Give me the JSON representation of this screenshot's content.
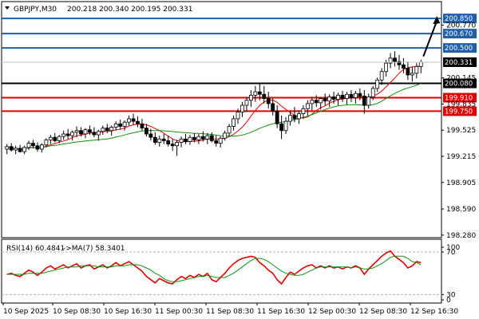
{
  "header": {
    "symbol": "GBPJPY,M30",
    "ohlc": "200.218 200.340 200.195 200.331"
  },
  "rsi_header": {
    "label": "RSI(14) 60.4841",
    "ma_label": "->MA(7) 58.3401"
  },
  "colors": {
    "blue": "#1f5fa8",
    "red": "#e00000",
    "black": "#000000",
    "bull_candle": "#ffffff",
    "bear_candle": "#000000",
    "ma_fast": "#e00000",
    "ma_slow": "#109010",
    "rsi_line": "#e00000",
    "rsi_ma": "#109010"
  },
  "chart_data": [
    {
      "type": "candlestick",
      "ylim": [
        198.25,
        201.05
      ],
      "price_axis_ticks": [
        "200.770",
        "200.145",
        "199.835",
        "199.525",
        "199.215",
        "198.905",
        "198.590",
        "198.280"
      ],
      "x_tick_labels": [
        "10 Sep 2025",
        "10 Sep 08:30",
        "10 Sep 16:30",
        "11 Sep 00:30",
        "11 Sep 08:30",
        "11 Sep 16:30",
        "12 Sep 00:30",
        "12 Sep 08:30",
        "12 Sep 16:30"
      ],
      "horizontal_levels": [
        {
          "value": 200.85,
          "label": "200.850",
          "color_key": "blue"
        },
        {
          "value": 200.67,
          "label": "200.670",
          "color_key": "blue"
        },
        {
          "value": 200.5,
          "label": "200.500",
          "color_key": "blue"
        },
        {
          "value": 200.08,
          "label": "200.080",
          "color_key": "black"
        },
        {
          "value": 199.91,
          "label": "199.910",
          "color_key": "red"
        },
        {
          "value": 199.75,
          "label": "199.750",
          "color_key": "red"
        }
      ],
      "current_price": {
        "value": 200.331,
        "label": "200.331"
      },
      "arrow": {
        "from": [
          0,
          200.4
        ],
        "to": [
          2,
          200.86
        ]
      },
      "candles": [
        [
          199.3,
          199.36,
          199.24,
          199.33
        ],
        [
          199.33,
          199.37,
          199.27,
          199.29
        ],
        [
          199.29,
          199.34,
          199.24,
          199.31
        ],
        [
          199.31,
          199.35,
          199.26,
          199.27
        ],
        [
          199.27,
          199.34,
          199.24,
          199.32
        ],
        [
          199.32,
          199.4,
          199.29,
          199.37
        ],
        [
          199.37,
          199.41,
          199.31,
          199.34
        ],
        [
          199.34,
          199.38,
          199.27,
          199.3
        ],
        [
          199.3,
          199.37,
          199.26,
          199.35
        ],
        [
          199.35,
          199.43,
          199.32,
          199.41
        ],
        [
          199.41,
          199.47,
          199.36,
          199.44
        ],
        [
          199.44,
          199.49,
          199.38,
          199.4
        ],
        [
          199.4,
          199.47,
          199.37,
          199.45
        ],
        [
          199.45,
          199.52,
          199.41,
          199.48
        ],
        [
          199.48,
          199.54,
          199.42,
          199.46
        ],
        [
          199.46,
          199.52,
          199.4,
          199.5
        ],
        [
          199.5,
          199.57,
          199.44,
          199.52
        ],
        [
          199.52,
          199.56,
          199.45,
          199.48
        ],
        [
          199.48,
          199.55,
          199.43,
          199.53
        ],
        [
          199.53,
          199.58,
          199.47,
          199.5
        ],
        [
          199.5,
          199.56,
          199.44,
          199.47
        ],
        [
          199.47,
          199.53,
          199.4,
          199.51
        ],
        [
          199.51,
          199.58,
          199.47,
          199.55
        ],
        [
          199.55,
          199.6,
          199.49,
          199.52
        ],
        [
          199.52,
          199.58,
          199.46,
          199.56
        ],
        [
          199.56,
          199.63,
          199.52,
          199.6
        ],
        [
          199.6,
          199.65,
          199.54,
          199.57
        ],
        [
          199.57,
          199.64,
          199.52,
          199.62
        ],
        [
          199.62,
          199.7,
          199.58,
          199.66
        ],
        [
          199.66,
          199.72,
          199.59,
          199.63
        ],
        [
          199.63,
          199.69,
          199.56,
          199.6
        ],
        [
          199.6,
          199.66,
          199.52,
          199.55
        ],
        [
          199.55,
          199.6,
          199.45,
          199.48
        ],
        [
          199.48,
          199.54,
          199.4,
          199.44
        ],
        [
          199.44,
          199.5,
          199.35,
          199.38
        ],
        [
          199.38,
          199.46,
          199.33,
          199.42
        ],
        [
          199.42,
          199.48,
          199.36,
          199.4
        ],
        [
          199.4,
          199.46,
          199.33,
          199.36
        ],
        [
          199.36,
          199.42,
          199.28,
          199.34
        ],
        [
          199.34,
          199.41,
          199.22,
          199.38
        ],
        [
          199.38,
          199.45,
          199.32,
          199.42
        ],
        [
          199.42,
          199.48,
          199.36,
          199.39
        ],
        [
          199.39,
          199.47,
          199.35,
          199.44
        ],
        [
          199.44,
          199.49,
          199.38,
          199.41
        ],
        [
          199.41,
          199.48,
          199.36,
          199.45
        ],
        [
          199.45,
          199.51,
          199.39,
          199.42
        ],
        [
          199.42,
          199.49,
          199.36,
          199.46
        ],
        [
          199.46,
          199.5,
          199.38,
          199.4
        ],
        [
          199.4,
          199.46,
          199.33,
          199.37
        ],
        [
          199.37,
          199.45,
          199.32,
          199.43
        ],
        [
          199.43,
          199.52,
          199.4,
          199.49
        ],
        [
          199.49,
          199.6,
          199.45,
          199.57
        ],
        [
          199.57,
          199.7,
          199.52,
          199.66
        ],
        [
          199.66,
          199.78,
          199.6,
          199.74
        ],
        [
          199.74,
          199.86,
          199.68,
          199.82
        ],
        [
          199.82,
          199.92,
          199.74,
          199.88
        ],
        [
          199.88,
          200.0,
          199.8,
          199.94
        ],
        [
          199.94,
          200.05,
          199.86,
          199.98
        ],
        [
          199.98,
          200.08,
          199.88,
          199.95
        ],
        [
          199.95,
          200.05,
          199.84,
          199.9
        ],
        [
          199.9,
          199.98,
          199.78,
          199.84
        ],
        [
          199.84,
          199.9,
          199.7,
          199.75
        ],
        [
          199.75,
          199.82,
          199.55,
          199.6
        ],
        [
          199.6,
          199.7,
          199.42,
          199.52
        ],
        [
          199.52,
          199.68,
          199.48,
          199.63
        ],
        [
          199.63,
          199.76,
          199.58,
          199.7
        ],
        [
          199.7,
          199.8,
          199.62,
          199.66
        ],
        [
          199.66,
          199.76,
          199.6,
          199.72
        ],
        [
          199.72,
          199.82,
          199.66,
          199.78
        ],
        [
          199.78,
          199.88,
          199.7,
          199.84
        ],
        [
          199.84,
          199.92,
          199.76,
          199.88
        ],
        [
          199.88,
          199.94,
          199.8,
          199.85
        ],
        [
          199.85,
          199.92,
          199.77,
          199.9
        ],
        [
          199.9,
          199.96,
          199.82,
          199.87
        ],
        [
          199.87,
          199.95,
          199.8,
          199.92
        ],
        [
          199.92,
          199.98,
          199.84,
          199.89
        ],
        [
          199.89,
          199.97,
          199.82,
          199.94
        ],
        [
          199.94,
          199.99,
          199.86,
          199.9
        ],
        [
          199.9,
          199.98,
          199.83,
          199.95
        ],
        [
          199.95,
          200.0,
          199.86,
          199.91
        ],
        [
          199.91,
          199.99,
          199.84,
          199.96
        ],
        [
          199.96,
          200.02,
          199.88,
          199.93
        ],
        [
          199.93,
          200.0,
          199.72,
          199.82
        ],
        [
          199.82,
          199.96,
          199.78,
          199.92
        ],
        [
          199.92,
          200.05,
          199.88,
          200.02
        ],
        [
          200.02,
          200.15,
          199.98,
          200.12
        ],
        [
          200.12,
          200.26,
          200.06,
          200.22
        ],
        [
          200.22,
          200.36,
          200.16,
          200.32
        ],
        [
          200.32,
          200.44,
          200.26,
          200.38
        ],
        [
          200.38,
          200.46,
          200.28,
          200.34
        ],
        [
          200.34,
          200.42,
          200.24,
          200.3
        ],
        [
          200.3,
          200.38,
          200.2,
          200.26
        ],
        [
          200.26,
          200.34,
          200.12,
          200.18
        ],
        [
          200.18,
          200.28,
          200.1,
          200.2
        ],
        [
          200.2,
          200.32,
          200.14,
          200.28
        ],
        [
          200.28,
          200.36,
          200.2,
          200.33
        ]
      ]
    },
    {
      "type": "line",
      "title": "RSI(14)",
      "ylim": [
        22,
        82
      ],
      "y_tick_labels": [
        "100",
        "70",
        "30",
        "0"
      ],
      "levels": [
        70,
        30
      ],
      "series": [
        {
          "name": "RSI(14)",
          "color_key": "rsi_line",
          "values": [
            49,
            50,
            48,
            47,
            50,
            53,
            51,
            48,
            51,
            55,
            57,
            54,
            56,
            58,
            55,
            57,
            59,
            55,
            57,
            58,
            54,
            56,
            58,
            55,
            57,
            60,
            57,
            59,
            61,
            58,
            55,
            52,
            47,
            44,
            41,
            45,
            43,
            41,
            40,
            44,
            47,
            45,
            48,
            46,
            49,
            47,
            50,
            44,
            42,
            46,
            50,
            55,
            59,
            62,
            64,
            65,
            66,
            65,
            60,
            57,
            53,
            50,
            44,
            40,
            46,
            51,
            49,
            52,
            55,
            57,
            58,
            55,
            57,
            55,
            57,
            55,
            56,
            54,
            56,
            55,
            57,
            55,
            49,
            54,
            58,
            62,
            66,
            69,
            71,
            66,
            63,
            60,
            55,
            57,
            61,
            60
          ]
        },
        {
          "name": "MA(7)",
          "color_key": "rsi_ma",
          "values": [
            49,
            49,
            49,
            49,
            49,
            50,
            50,
            50,
            50,
            51,
            52,
            53,
            54,
            55,
            56,
            56,
            56,
            57,
            57,
            57,
            57,
            56,
            56,
            56,
            56,
            57,
            57,
            57,
            58,
            58,
            58,
            57,
            55,
            53,
            50,
            48,
            45,
            43,
            42,
            42,
            43,
            44,
            45,
            46,
            47,
            47,
            48,
            47,
            46,
            46,
            46,
            48,
            50,
            53,
            56,
            59,
            62,
            64,
            64,
            63,
            61,
            58,
            55,
            52,
            50,
            49,
            48,
            48,
            49,
            51,
            53,
            55,
            56,
            56,
            56,
            56,
            56,
            56,
            56,
            55,
            56,
            55,
            54,
            54,
            55,
            57,
            59,
            62,
            65,
            66,
            66,
            66,
            64,
            61,
            60,
            58
          ]
        }
      ]
    }
  ]
}
